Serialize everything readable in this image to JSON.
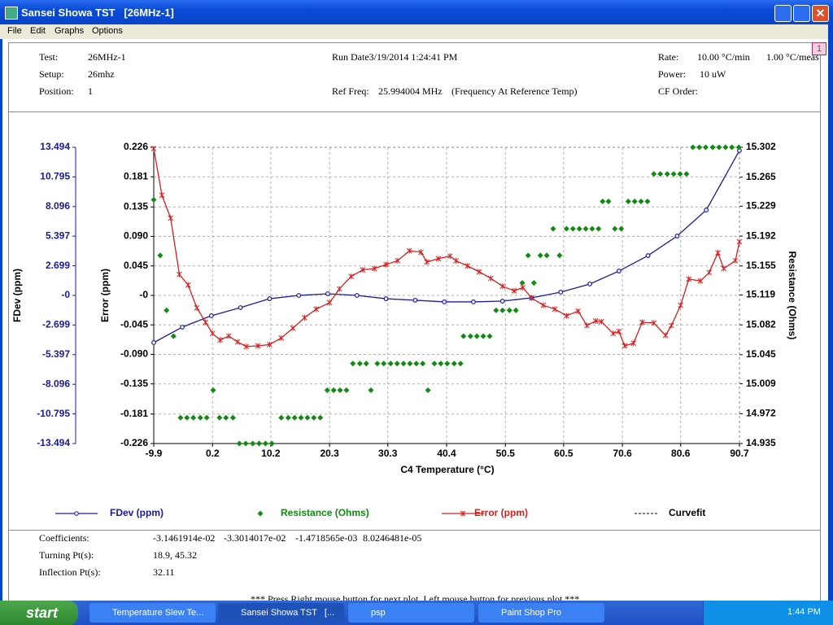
{
  "window": {
    "title": "Sansei Showa TST   [26MHz-1]",
    "menu": [
      "File",
      "Edit",
      "Graphs",
      "Options"
    ],
    "badge": "1"
  },
  "header": {
    "test": {
      "label": "Test:",
      "value": "26MHz-1"
    },
    "setup": {
      "label": "Setup:",
      "value": "26mhz"
    },
    "position": {
      "label": "Position:",
      "value": "1"
    },
    "run_date": "Run Date3/19/2014 1:24:41 PM",
    "ref_freq": {
      "label": "Ref Freq:",
      "value": "25.994004 MHz",
      "note": "(Frequency At Reference Temp)"
    },
    "rate": {
      "label": "Rate:",
      "value": "10.00 °C/min",
      "value2": "1.00 °C/meas"
    },
    "power": {
      "label": "Power:",
      "value": "10 uW"
    },
    "cf_order": {
      "label": "CF Order:"
    }
  },
  "chart_data": {
    "type": "line",
    "xlabel": "C4 Temperature (°C)",
    "xlim": [
      -9.9,
      90.7
    ],
    "xticks": [
      -9.9,
      0.2,
      10.2,
      20.3,
      30.3,
      40.4,
      50.5,
      60.5,
      70.6,
      80.6,
      90.7
    ],
    "grid": true,
    "ylabel": "Error (ppm)",
    "ylim": [
      -0.226,
      0.226
    ],
    "yticks": [
      0.226,
      0.181,
      0.135,
      {
        "value": 0.09,
        "label": "0.090"
      },
      0.045,
      {
        "value": 0,
        "label": "-0"
      },
      -0.045,
      {
        "value": -0.09,
        "label": "-0.090"
      },
      -0.135,
      -0.181,
      -0.226
    ],
    "y2label": "Resistance (Ohms)",
    "y2lim": [
      14.935,
      15.302
    ],
    "y2ticks": [
      15.302,
      15.265,
      15.229,
      15.192,
      15.155,
      15.119,
      15.082,
      15.045,
      15.009,
      14.972,
      14.935
    ],
    "y3label": "FDev (ppm)",
    "y3lim": [
      -13.494,
      13.494
    ],
    "y3ticks": [
      13.494,
      10.795,
      8.096,
      5.397,
      2.699,
      {
        "value": 0,
        "label": "-0"
      },
      -2.699,
      -5.397,
      -8.096,
      -10.795,
      -13.494
    ],
    "series": [
      {
        "name": "FDev (ppm)",
        "type": "line",
        "axis": "y3",
        "color": "#1a1aa0",
        "x": [
          -9.9,
          -5,
          0,
          5,
          10,
          15,
          20,
          25,
          30,
          35,
          40,
          45,
          50,
          55,
          60,
          65,
          70,
          75,
          80,
          85,
          90.7
        ],
        "values": [
          -4.3,
          -2.89,
          -1.85,
          -1.11,
          -0.3,
          0,
          0.15,
          0,
          -0.3,
          -0.44,
          -0.59,
          -0.59,
          -0.52,
          -0.22,
          0.3,
          1.04,
          2.22,
          3.63,
          5.41,
          7.78,
          13.2
        ]
      },
      {
        "name": "Resistance (Ohms)",
        "type": "scatter",
        "axis": "y2",
        "color": "#108a10",
        "x": [
          -9.9,
          -8.8,
          -7.7,
          -6.5,
          -5.3,
          -4.2,
          -3.1,
          -1.9,
          -0.8,
          0.3,
          1.4,
          2.5,
          3.7,
          4.8,
          5.9,
          7.1,
          8.2,
          9.3,
          10.4,
          12.0,
          13.2,
          14.3,
          15.4,
          16.5,
          17.6,
          18.7,
          19.9,
          21.0,
          22.1,
          23.2,
          24.3,
          25.5,
          26.6,
          27.4,
          28.5,
          29.6,
          30.8,
          31.9,
          33.0,
          34.1,
          35.2,
          36.3,
          37.2,
          38.3,
          39.4,
          40.5,
          41.7,
          42.8,
          43.3,
          44.5,
          45.6,
          46.7,
          47.8,
          48.9,
          50.0,
          51.2,
          52.3,
          53.4,
          54.4,
          55.4,
          56.5,
          57.6,
          58.7,
          59.8,
          61.0,
          62.1,
          63.2,
          64.3,
          65.4,
          66.5,
          67.2,
          68.2,
          69.3,
          70.4,
          71.6,
          72.7,
          73.8,
          74.9,
          76.0,
          77.1,
          78.3,
          79.4,
          80.5,
          81.6,
          82.7,
          83.8,
          84.9,
          86.1,
          87.2,
          88.3,
          89.4,
          90.6
        ],
        "values": [
          15.237,
          15.168,
          15.1,
          15.068,
          14.967,
          14.967,
          14.967,
          14.967,
          14.967,
          15.001,
          14.967,
          14.967,
          14.967,
          14.935,
          14.935,
          14.935,
          14.935,
          14.935,
          14.935,
          14.967,
          14.967,
          14.967,
          14.967,
          14.967,
          14.967,
          14.967,
          15.001,
          15.001,
          15.001,
          15.001,
          15.034,
          15.034,
          15.034,
          15.001,
          15.034,
          15.034,
          15.034,
          15.034,
          15.034,
          15.034,
          15.034,
          15.034,
          15.001,
          15.034,
          15.034,
          15.034,
          15.034,
          15.034,
          15.068,
          15.068,
          15.068,
          15.068,
          15.068,
          15.1,
          15.1,
          15.1,
          15.1,
          15.134,
          15.168,
          15.134,
          15.168,
          15.168,
          15.201,
          15.168,
          15.201,
          15.201,
          15.201,
          15.201,
          15.201,
          15.201,
          15.235,
          15.235,
          15.201,
          15.201,
          15.235,
          15.235,
          15.235,
          15.235,
          15.269,
          15.269,
          15.269,
          15.269,
          15.269,
          15.269,
          15.302,
          15.302,
          15.302,
          15.302,
          15.302,
          15.302,
          15.302,
          15.302
        ]
      },
      {
        "name": "Error (ppm)",
        "type": "line",
        "axis": "y",
        "color": "#d42020",
        "x": [
          -9.9,
          -8.5,
          -7,
          -5.5,
          -4,
          -2.5,
          -1,
          0.2,
          1.5,
          3,
          4.5,
          6,
          8,
          10,
          12,
          14,
          16,
          18,
          20.3,
          22,
          24,
          26,
          28,
          30,
          32,
          34,
          36,
          37,
          39,
          41,
          42,
          44,
          46,
          48,
          50,
          52,
          53.5,
          55,
          57,
          59,
          61,
          63,
          64.5,
          66,
          67,
          69,
          70,
          71,
          72.5,
          74,
          76,
          78,
          79,
          80.6,
          82,
          84,
          85.5,
          87,
          88,
          90,
          90.7
        ],
        "values": [
          0.224,
          0.153,
          0.118,
          0.032,
          0.016,
          -0.019,
          -0.041,
          -0.058,
          -0.068,
          -0.062,
          -0.071,
          -0.078,
          -0.077,
          -0.075,
          -0.065,
          -0.05,
          -0.034,
          -0.021,
          -0.011,
          0.01,
          0.029,
          0.039,
          0.041,
          0.047,
          0.053,
          0.068,
          0.066,
          0.051,
          0.056,
          0.06,
          0.053,
          0.045,
          0.036,
          0.026,
          0.014,
          0.007,
          0.012,
          -0.004,
          -0.015,
          -0.021,
          -0.031,
          -0.024,
          -0.046,
          -0.039,
          -0.04,
          -0.058,
          -0.055,
          -0.077,
          -0.073,
          -0.041,
          -0.042,
          -0.061,
          -0.046,
          -0.015,
          0.025,
          0.022,
          0.035,
          0.065,
          0.041,
          0.053,
          0.082
        ]
      }
    ],
    "curvefit_legend": {
      "name": "Curvefit",
      "color": "#000000"
    }
  },
  "results": {
    "coefficients": {
      "label": "Coefficients:",
      "values": [
        "-3.1461914e-02",
        "-3.3014017e-02",
        "-1.4718565e-03",
        "8.0246481e-05"
      ]
    },
    "turning": {
      "label": "Turning Pt(s):",
      "value": "18.9, 45.32"
    },
    "inflection": {
      "label": "Inflection Pt(s):",
      "value": "32.11"
    }
  },
  "footer": "*** Press Right mouse button for next plot, Left mouse button for previous plot ***",
  "taskbar": {
    "start": "start",
    "buttons": [
      "Temperature Slew Te...",
      "Sansei Showa TST   [...",
      "psp",
      "Paint Shop Pro"
    ],
    "clock": "1:44 PM"
  }
}
